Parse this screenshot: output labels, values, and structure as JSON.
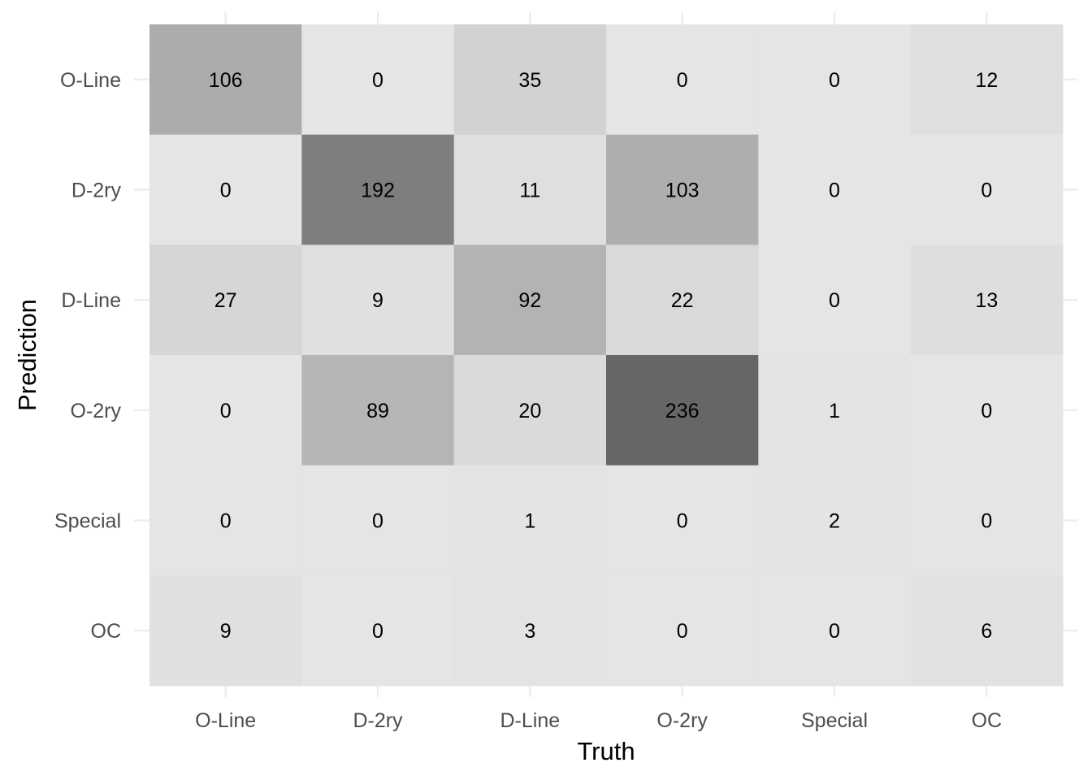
{
  "chart_data": {
    "type": "heatmap",
    "xlabel": "Truth",
    "ylabel": "Prediction",
    "x_categories": [
      "O-Line",
      "D-2ry",
      "D-Line",
      "O-2ry",
      "Special",
      "OC"
    ],
    "y_categories": [
      "O-Line",
      "D-2ry",
      "D-Line",
      "O-2ry",
      "Special",
      "OC"
    ],
    "values": [
      [
        106,
        0,
        35,
        0,
        0,
        12
      ],
      [
        0,
        192,
        11,
        103,
        0,
        0
      ],
      [
        27,
        9,
        92,
        22,
        0,
        13
      ],
      [
        0,
        89,
        20,
        236,
        1,
        0
      ],
      [
        0,
        0,
        1,
        0,
        2,
        0
      ],
      [
        9,
        0,
        3,
        0,
        0,
        6
      ]
    ],
    "color_low": "#e5e5e5",
    "color_high": "#666666",
    "grid": true,
    "legend": "none"
  }
}
